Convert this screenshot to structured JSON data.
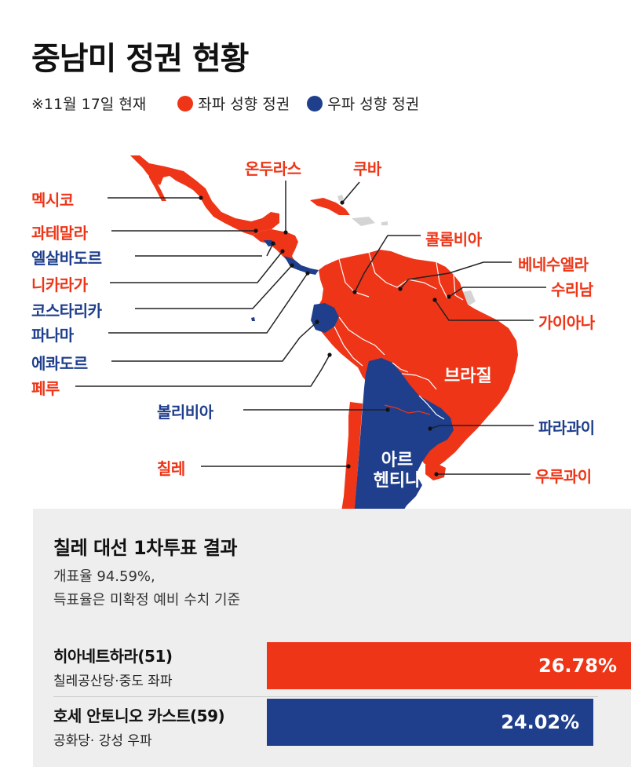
{
  "header": {
    "title": "중남미 정권 현황",
    "date": "※11월 17일 현재",
    "legend": [
      {
        "label": "좌파 성향 정권",
        "color": "#ee3517"
      },
      {
        "label": "우파 성향 정권",
        "color": "#1f3f8c"
      }
    ]
  },
  "countries": {
    "mexico": "멕시코",
    "guatemala": "과테말라",
    "el_salvador": "엘살바도르",
    "nicaragua": "니카라가",
    "costa_rica": "코스타리카",
    "panama": "파나마",
    "ecuador": "에콰도르",
    "peru": "페루",
    "honduras": "온두라스",
    "cuba": "쿠바",
    "colombia": "콜롬비아",
    "venezuela": "베네수엘라",
    "suriname": "수리남",
    "guyana": "가이아나",
    "brazil": "브라질",
    "bolivia": "볼리비아",
    "paraguay": "파라과이",
    "chile": "칠레",
    "argentina_1": "아르",
    "argentina_2": "헨티나",
    "uruguay": "우루과이"
  },
  "results": {
    "title": "칠레 대선 1차투표 결과",
    "note_line1": "개표율 94.59%,",
    "note_line2": "득표율은 미확정 예비 수치 기준",
    "candidates": [
      {
        "name": "히아네트하라(51)",
        "party": "칠레공산당·중도 좌파",
        "share_label": "26.78%",
        "share": 26.78,
        "color": "#ee3517"
      },
      {
        "name": "호세 안토니오 카스트(59)",
        "party": "공화당· 강성 우파",
        "share_label": "24.02%",
        "share": 24.02,
        "color": "#1f3f8c"
      }
    ]
  }
}
